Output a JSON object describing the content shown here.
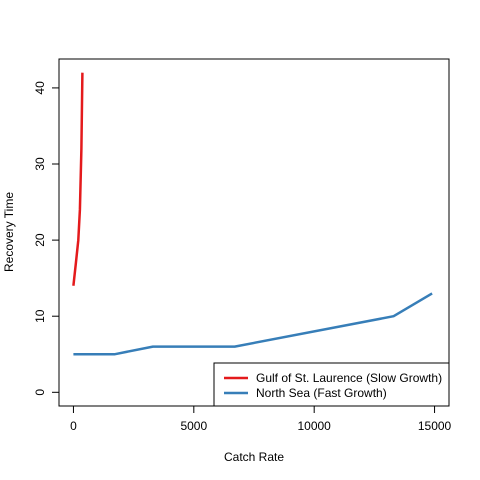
{
  "chart_data": {
    "type": "line",
    "title": "",
    "xlabel": "Catch Rate",
    "ylabel": "Recovery Time",
    "xlim": [
      -600,
      15600
    ],
    "ylim": [
      -1.8,
      43.8
    ],
    "x_ticks": [
      0,
      5000,
      10000,
      15000
    ],
    "y_ticks": [
      0,
      10,
      20,
      30,
      40
    ],
    "x_tick_labels": [
      "0",
      "5000",
      "10000",
      "15000"
    ],
    "y_tick_labels": [
      "0",
      "10",
      "20",
      "30",
      "40"
    ],
    "grid": false,
    "legend_position": "bottom-right",
    "series": [
      {
        "name": "Gulf of St. Laurence (Slow Growth)",
        "color": "#e41a1c",
        "x": [
          0,
          100,
          200,
          270,
          330,
          370
        ],
        "y": [
          14,
          17,
          20,
          24,
          32,
          42
        ]
      },
      {
        "name": "North Sea (Fast Growth)",
        "color": "#377eb8",
        "x": [
          0,
          1700,
          3300,
          6700,
          13300,
          14900
        ],
        "y": [
          5,
          5,
          6,
          6,
          10,
          13
        ]
      }
    ]
  }
}
